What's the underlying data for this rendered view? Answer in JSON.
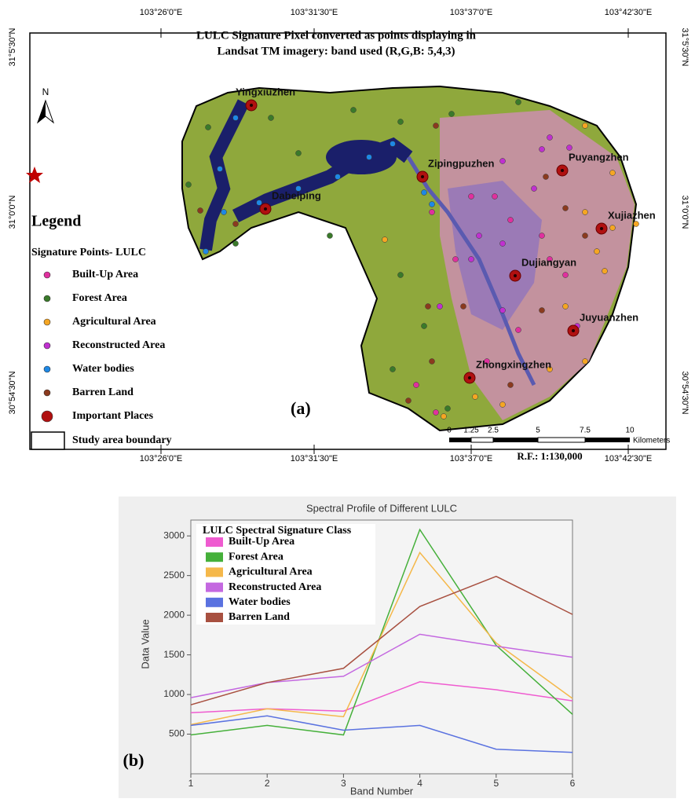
{
  "map": {
    "title_lines": [
      "LULC Signature Pixel converted as points displaying in",
      "Landsat TM imagery: band used (R,G,B: 5,4,3)"
    ],
    "lon_labels": [
      "103°26'0\"E",
      "103°31'30\"E",
      "103°37'0\"E",
      "103°42'30\"E"
    ],
    "lat_labels": [
      "31°5'30\"N",
      "31°0'0\"N",
      "30°54'30\"N"
    ],
    "north": "N",
    "places": [
      "Yingxiuzhen",
      "Zipingpuzhen",
      "Puyangzhen",
      "Dabeiping",
      "Xujiazhen",
      "Dujiangyan",
      "Juyuanzhen",
      "Zhongxingzhen"
    ],
    "legend_title": "Legend",
    "legend_subtitle": "Signature Points- LULC",
    "legend_items": [
      {
        "label": "Built-Up Area",
        "color": "#e0309e"
      },
      {
        "label": "Forest  Area",
        "color": "#3a7a2a"
      },
      {
        "label": "Agricultural Area",
        "color": "#f5a623"
      },
      {
        "label": "Reconstructed Area",
        "color": "#c030d0"
      },
      {
        "label": "Water bodies",
        "color": "#1e88e5"
      },
      {
        "label": "Barren Land",
        "color": "#8b3a1e"
      },
      {
        "label": "Important Places",
        "color": "#b01010"
      }
    ],
    "boundary_label": "Study area boundary",
    "scale_labels": [
      "0",
      "1.25",
      "2.5",
      "5",
      "7.5",
      "10"
    ],
    "scale_unit": "Kilometers",
    "rf": "R.F.: 1:130,000",
    "panel_label": "(a)"
  },
  "chart_data": {
    "type": "line",
    "title": "Spectral Profile of Different LULC",
    "panel_label": "(b)",
    "x_label": "Band Number",
    "y_label": "Data Value",
    "legend_title": "LULC Spectral Signature Class",
    "x": [
      1,
      2,
      3,
      4,
      5,
      6
    ],
    "xlim": [
      1,
      6
    ],
    "xticks": [
      1,
      2,
      3,
      4,
      5,
      6
    ],
    "ylim": [
      0,
      3200
    ],
    "yticks": [
      500,
      1000,
      1500,
      2000,
      2500,
      3000
    ],
    "series": [
      {
        "name": "Built-Up Area",
        "color": "#ef5bd0",
        "values": [
          770,
          820,
          790,
          1160,
          1060,
          920
        ]
      },
      {
        "name": "Forest Area",
        "color": "#45b03a",
        "values": [
          490,
          610,
          490,
          3080,
          1620,
          750
        ]
      },
      {
        "name": "Agricultural Area",
        "color": "#f5b84a",
        "values": [
          620,
          820,
          720,
          2790,
          1650,
          950
        ]
      },
      {
        "name": "Reconstructed Area",
        "color": "#c468e0",
        "values": [
          960,
          1150,
          1230,
          1760,
          1610,
          1470
        ]
      },
      {
        "name": "Water bodies",
        "color": "#5a72e0",
        "values": [
          610,
          730,
          550,
          610,
          310,
          270
        ]
      },
      {
        "name": "Barren Land",
        "color": "#a85040",
        "values": [
          870,
          1150,
          1330,
          2110,
          2490,
          2010
        ]
      }
    ]
  }
}
